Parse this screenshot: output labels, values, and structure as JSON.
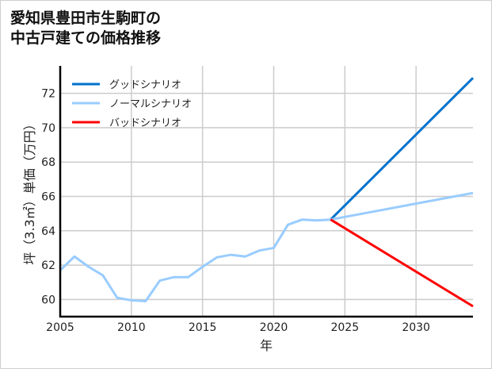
{
  "chart_data": {
    "type": "line",
    "title": [
      "愛知県豊田市生駒町の",
      "中古戸建ての価格推移"
    ],
    "xlabel": "年",
    "ylabel": "坪（3.3㎡）単価（万円）",
    "xlim": [
      2005,
      2034
    ],
    "ylim": [
      59.0,
      73.6
    ],
    "xticks": [
      2005,
      2010,
      2015,
      2020,
      2025,
      2030
    ],
    "yticks": [
      60,
      62,
      64,
      66,
      68,
      70,
      72
    ],
    "grid": true,
    "legend_position": "top-left",
    "series": [
      {
        "name": "グッドシナリオ",
        "color": "#0072cc",
        "x": [
          2024,
          2034
        ],
        "y": [
          64.65,
          72.9
        ]
      },
      {
        "name": "ノーマルシナリオ",
        "color": "#99ccff",
        "x": [
          2005,
          2006,
          2007,
          2008,
          2009,
          2010,
          2011,
          2012,
          2013,
          2014,
          2015,
          2016,
          2017,
          2018,
          2019,
          2020,
          2021,
          2022,
          2023,
          2024,
          2034
        ],
        "y": [
          61.7,
          62.5,
          61.9,
          61.4,
          60.1,
          59.95,
          59.9,
          61.1,
          61.3,
          61.3,
          61.9,
          62.45,
          62.6,
          62.5,
          62.85,
          63.0,
          64.35,
          64.65,
          64.6,
          64.65,
          66.2
        ]
      },
      {
        "name": "バッドシナリオ",
        "color": "#ff0000",
        "x": [
          2024,
          2034
        ],
        "y": [
          64.65,
          59.6
        ]
      }
    ]
  }
}
